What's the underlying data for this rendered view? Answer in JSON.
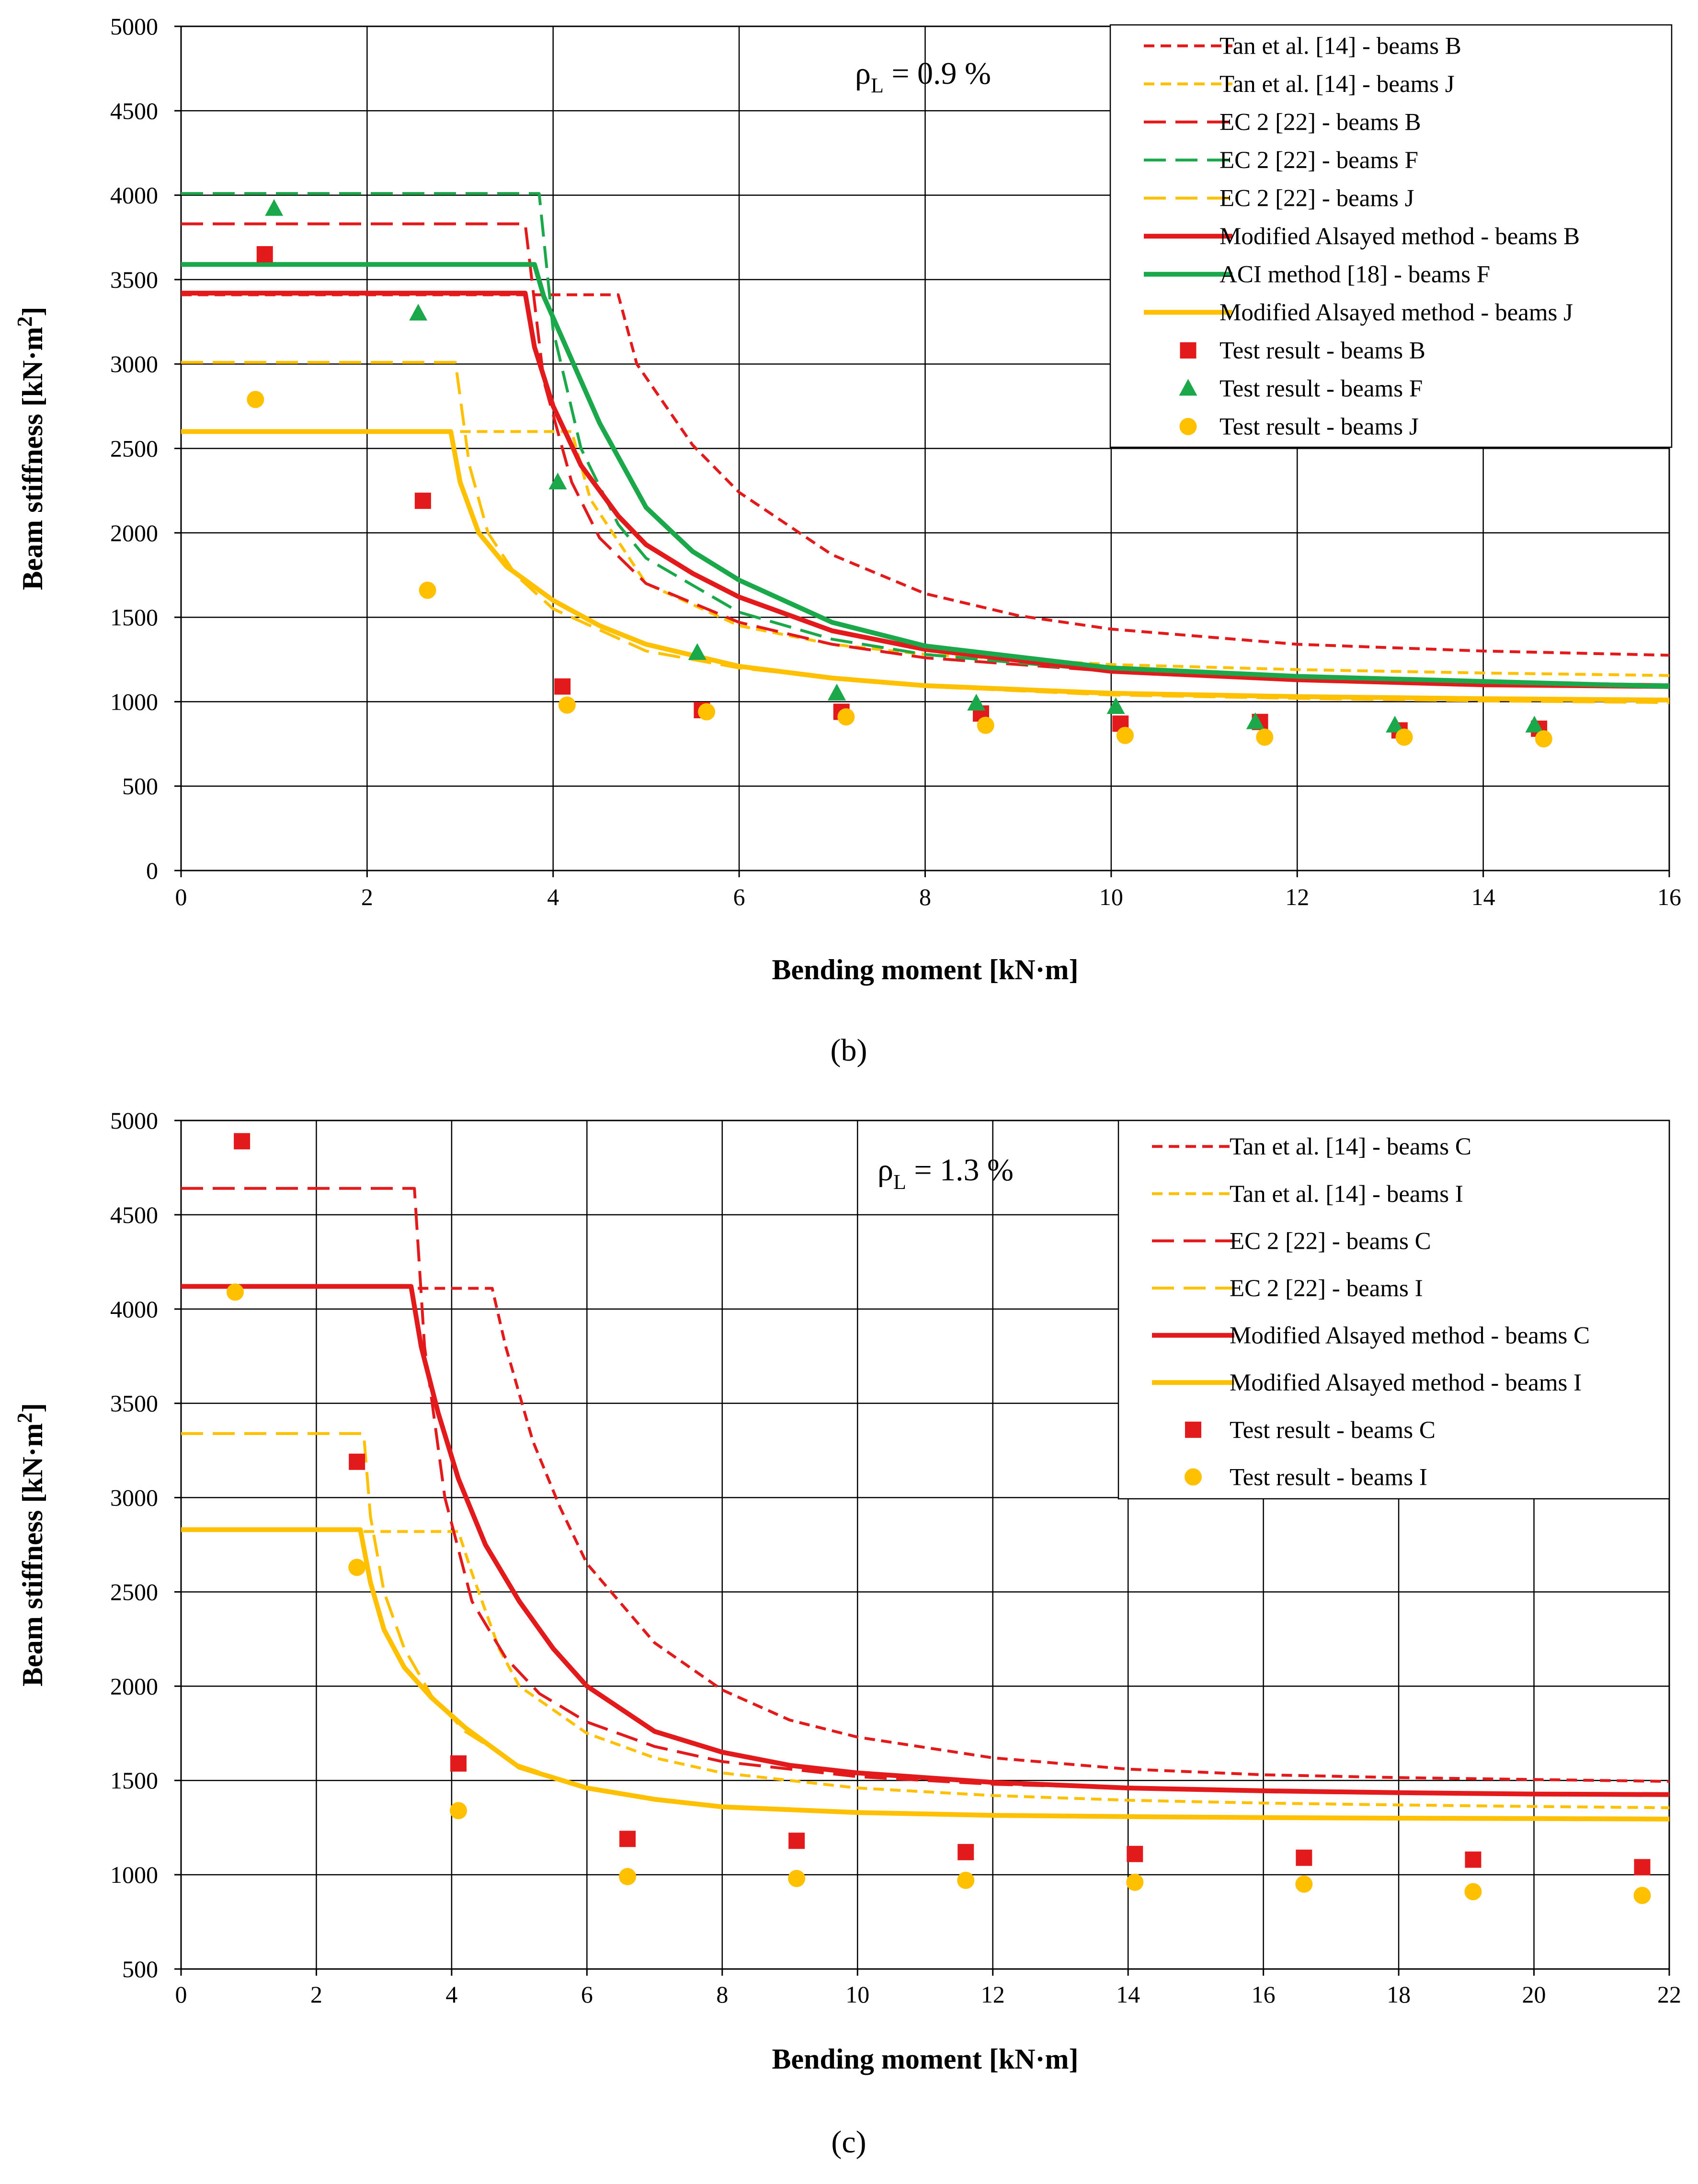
{
  "chart_data": [
    {
      "type": "line",
      "caption": "(b)",
      "annotation": {
        "rho": "ρ",
        "sub": "L",
        "value": " = 0.9 %"
      },
      "xlabel": "Bending moment [kN·m]",
      "ylabel": "Beam stiffness [kN·m",
      "ylabel_sup": "2",
      "ylabel_end": "]",
      "xlim": [
        0,
        16
      ],
      "ylim": [
        0,
        5000
      ],
      "xticks": [
        0,
        2,
        4,
        6,
        8,
        10,
        12,
        14,
        16
      ],
      "yticks": [
        0,
        500,
        1000,
        1500,
        2000,
        2500,
        3000,
        3500,
        4000,
        4500,
        5000
      ],
      "grid": true,
      "legend_position": "top-right",
      "series": [
        {
          "name": "Tan et al. [14] - beams B",
          "style": "short-dash",
          "color": "#e31a1c",
          "x": [
            0,
            4.7,
            4.9,
            5.5,
            6,
            7,
            8,
            9,
            10,
            12,
            14,
            16
          ],
          "y": [
            3410,
            3410,
            3000,
            2520,
            2240,
            1870,
            1640,
            1510,
            1430,
            1340,
            1300,
            1275
          ]
        },
        {
          "name": "Tan et al. [14] - beams J",
          "style": "short-dash",
          "color": "#ffc000",
          "x": [
            3.0,
            4.2,
            4.4,
            5,
            6,
            7,
            8,
            10,
            12,
            14,
            16
          ],
          "y": [
            2600,
            2600,
            2200,
            1700,
            1450,
            1340,
            1280,
            1220,
            1190,
            1170,
            1155
          ]
        },
        {
          "name": "EC 2 [22] - beams B",
          "style": "long-dash",
          "color": "#e31a1c",
          "x": [
            0,
            3.7,
            3.9,
            4.2,
            4.5,
            5,
            6,
            7,
            8,
            10,
            12,
            14,
            16
          ],
          "y": [
            3830,
            3830,
            2900,
            2300,
            1970,
            1700,
            1470,
            1340,
            1260,
            1180,
            1140,
            1115,
            1100
          ]
        },
        {
          "name": "EC 2 [22] - beams F",
          "style": "long-dash",
          "color": "#1aa84a",
          "x": [
            0,
            3.85,
            4.0,
            4.3,
            4.7,
            5,
            6,
            7,
            8,
            10,
            12,
            14,
            16
          ],
          "y": [
            4010,
            4010,
            3200,
            2500,
            2050,
            1850,
            1530,
            1370,
            1280,
            1180,
            1140,
            1115,
            1100
          ]
        },
        {
          "name": "EC 2 [22] - beams J",
          "style": "long-dash",
          "color": "#ffc000",
          "x": [
            0,
            2.95,
            3.1,
            3.3,
            3.6,
            4,
            5,
            6,
            7,
            8,
            10,
            12,
            14,
            16
          ],
          "y": [
            3010,
            3010,
            2400,
            2000,
            1750,
            1550,
            1300,
            1200,
            1140,
            1090,
            1040,
            1020,
            1005,
            995
          ]
        },
        {
          "name": "Modified Alsayed method - beams B",
          "style": "solid",
          "color": "#e31a1c",
          "x": [
            0,
            3.7,
            3.8,
            4.0,
            4.3,
            4.7,
            5,
            5.5,
            6,
            7,
            8,
            10,
            12,
            14,
            16
          ],
          "y": [
            3420,
            3420,
            3100,
            2750,
            2400,
            2100,
            1930,
            1760,
            1620,
            1420,
            1310,
            1180,
            1130,
            1100,
            1090
          ]
        },
        {
          "name": "ACI method [18] - beams F",
          "style": "solid",
          "color": "#1aa84a",
          "x": [
            0,
            3.8,
            3.9,
            4.1,
            4.5,
            5,
            5.5,
            6,
            7,
            8,
            10,
            12,
            14,
            16
          ],
          "y": [
            3590,
            3590,
            3400,
            3150,
            2650,
            2150,
            1890,
            1720,
            1470,
            1330,
            1200,
            1150,
            1120,
            1090
          ]
        },
        {
          "name": "Modified Alsayed method - beams J",
          "style": "solid",
          "color": "#ffc000",
          "x": [
            0,
            2.9,
            3.0,
            3.2,
            3.5,
            4,
            4.5,
            5,
            6,
            7,
            8,
            10,
            12,
            14,
            16
          ],
          "y": [
            2600,
            2600,
            2300,
            2000,
            1800,
            1600,
            1450,
            1340,
            1210,
            1140,
            1095,
            1050,
            1030,
            1018,
            1010
          ]
        },
        {
          "name": "Test result - beams B",
          "marker": "square",
          "color": "#e31a1c",
          "x": [
            0.9,
            2.6,
            4.1,
            5.6,
            7.1,
            8.6,
            10.1,
            11.6,
            13.1,
            14.6
          ],
          "y": [
            3650,
            2190,
            1090,
            950,
            940,
            930,
            870,
            880,
            830,
            840
          ]
        },
        {
          "name": "Test result - beams F",
          "marker": "triangle",
          "color": "#1aa84a",
          "x": [
            1.0,
            2.55,
            4.05,
            5.55,
            7.05,
            8.55,
            10.05,
            11.55,
            13.05,
            14.55
          ],
          "y": [
            3920,
            3300,
            2300,
            1290,
            1050,
            990,
            970,
            880,
            860,
            860
          ]
        },
        {
          "name": "Test result - beams J",
          "marker": "circle",
          "color": "#ffc000",
          "x": [
            0.8,
            2.65,
            4.15,
            5.65,
            7.15,
            8.65,
            10.15,
            11.65,
            13.15,
            14.65
          ],
          "y": [
            2790,
            1660,
            980,
            940,
            910,
            860,
            800,
            790,
            790,
            780
          ]
        }
      ]
    },
    {
      "type": "line",
      "caption": "(c)",
      "annotation": {
        "rho": "ρ",
        "sub": "L",
        "value": " = 1.3 %"
      },
      "xlabel": "Bending moment [kN·m]",
      "ylabel": "Beam stiffness [kN·m",
      "ylabel_sup": "2",
      "ylabel_end": "]",
      "xlim": [
        0,
        22
      ],
      "ylim": [
        500,
        5000
      ],
      "xticks": [
        0,
        2,
        4,
        6,
        8,
        10,
        12,
        14,
        16,
        18,
        20,
        22
      ],
      "yticks": [
        500,
        1000,
        1500,
        2000,
        2500,
        3000,
        3500,
        4000,
        4500,
        5000
      ],
      "grid": true,
      "legend_position": "top-right",
      "series": [
        {
          "name": "Tan et al. [14] - beams C",
          "style": "short-dash",
          "color": "#e31a1c",
          "x": [
            3.5,
            4.6,
            4.8,
            5.2,
            5.6,
            6,
            7,
            8,
            9,
            10,
            12,
            14,
            16,
            18,
            20,
            22
          ],
          "y": [
            4110,
            4110,
            3800,
            3300,
            2950,
            2650,
            2230,
            1980,
            1820,
            1730,
            1620,
            1560,
            1530,
            1515,
            1505,
            1495
          ]
        },
        {
          "name": "Tan et al. [14] - beams I",
          "style": "short-dash",
          "color": "#ffc000",
          "x": [
            2.7,
            4.1,
            4.3,
            4.7,
            5,
            6,
            7,
            8,
            10,
            12,
            14,
            16,
            18,
            20,
            22
          ],
          "y": [
            2820,
            2820,
            2600,
            2200,
            2000,
            1750,
            1620,
            1540,
            1460,
            1420,
            1395,
            1380,
            1370,
            1362,
            1355
          ]
        },
        {
          "name": "EC 2 [22] - beams C",
          "style": "long-dash",
          "color": "#e31a1c",
          "x": [
            0,
            3.45,
            3.6,
            3.9,
            4.3,
            4.8,
            5.3,
            6,
            7,
            8,
            10,
            12,
            14,
            16,
            18,
            20,
            22
          ],
          "y": [
            4640,
            4640,
            3800,
            3000,
            2450,
            2150,
            1960,
            1810,
            1680,
            1600,
            1520,
            1480,
            1460,
            1445,
            1435,
            1430,
            1425
          ]
        },
        {
          "name": "EC 2 [22] - beams I",
          "style": "long-dash",
          "color": "#ffc000",
          "x": [
            0,
            2.7,
            2.8,
            3.0,
            3.3,
            3.7,
            4.2,
            5,
            6,
            7,
            8,
            10,
            12,
            14,
            16,
            18,
            20,
            22
          ],
          "y": [
            3340,
            3340,
            2900,
            2500,
            2200,
            1950,
            1760,
            1580,
            1460,
            1400,
            1360,
            1330,
            1315,
            1305,
            1300,
            1297,
            1295,
            1293
          ]
        },
        {
          "name": "Modified Alsayed method - beams C",
          "style": "solid",
          "color": "#e31a1c",
          "x": [
            0,
            3.4,
            3.55,
            3.8,
            4.1,
            4.5,
            5,
            5.5,
            6,
            7,
            8,
            9,
            10,
            12,
            14,
            16,
            18,
            20,
            22
          ],
          "y": [
            4120,
            4120,
            3800,
            3450,
            3100,
            2750,
            2450,
            2200,
            2000,
            1760,
            1650,
            1580,
            1540,
            1490,
            1460,
            1445,
            1435,
            1428,
            1425
          ]
        },
        {
          "name": "Modified Alsayed method - beams I",
          "style": "solid",
          "color": "#ffc000",
          "x": [
            0,
            2.65,
            2.8,
            3.0,
            3.3,
            3.7,
            4.2,
            5,
            6,
            7,
            8,
            10,
            12,
            14,
            16,
            18,
            20,
            22
          ],
          "y": [
            2830,
            2830,
            2550,
            2300,
            2100,
            1940,
            1780,
            1570,
            1460,
            1400,
            1360,
            1330,
            1315,
            1308,
            1303,
            1300,
            1298,
            1295
          ]
        },
        {
          "name": "Test result - beams C",
          "marker": "square",
          "color": "#e31a1c",
          "x": [
            0.9,
            2.6,
            4.1,
            6.6,
            9.1,
            11.6,
            14.1,
            16.6,
            19.1,
            21.6
          ],
          "y": [
            4890,
            3190,
            1590,
            1190,
            1180,
            1120,
            1110,
            1090,
            1080,
            1040
          ]
        },
        {
          "name": "Test result - beams I",
          "marker": "circle",
          "color": "#ffc000",
          "x": [
            0.8,
            2.6,
            4.1,
            6.6,
            9.1,
            11.6,
            14.1,
            16.6,
            19.1,
            21.6
          ],
          "y": [
            4090,
            2630,
            1340,
            990,
            980,
            970,
            960,
            950,
            910,
            890
          ]
        }
      ]
    }
  ]
}
